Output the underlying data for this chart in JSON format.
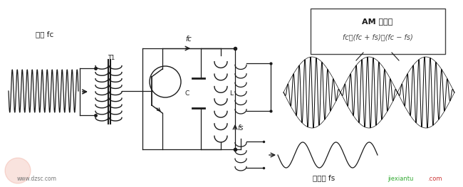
{
  "bg_color": "#ffffff",
  "line_color": "#1a1a1a",
  "text_color": "#1a1a1a",
  "carrier_label": "载波 fc",
  "signal_label": "信号波 fs",
  "am_label": "AM 已调波",
  "am_formula": "fc，(fc + fs)，(fc − fs)",
  "T1_label": "T1",
  "C_label": "C",
  "L_label": "L",
  "fc_label": "fc",
  "fs_label": "fs",
  "watermark1": "www.dzsc.com",
  "watermark2": "jiexiantu",
  "watermark3": ".com",
  "figsize": [
    6.5,
    2.63
  ],
  "dpi": 100
}
